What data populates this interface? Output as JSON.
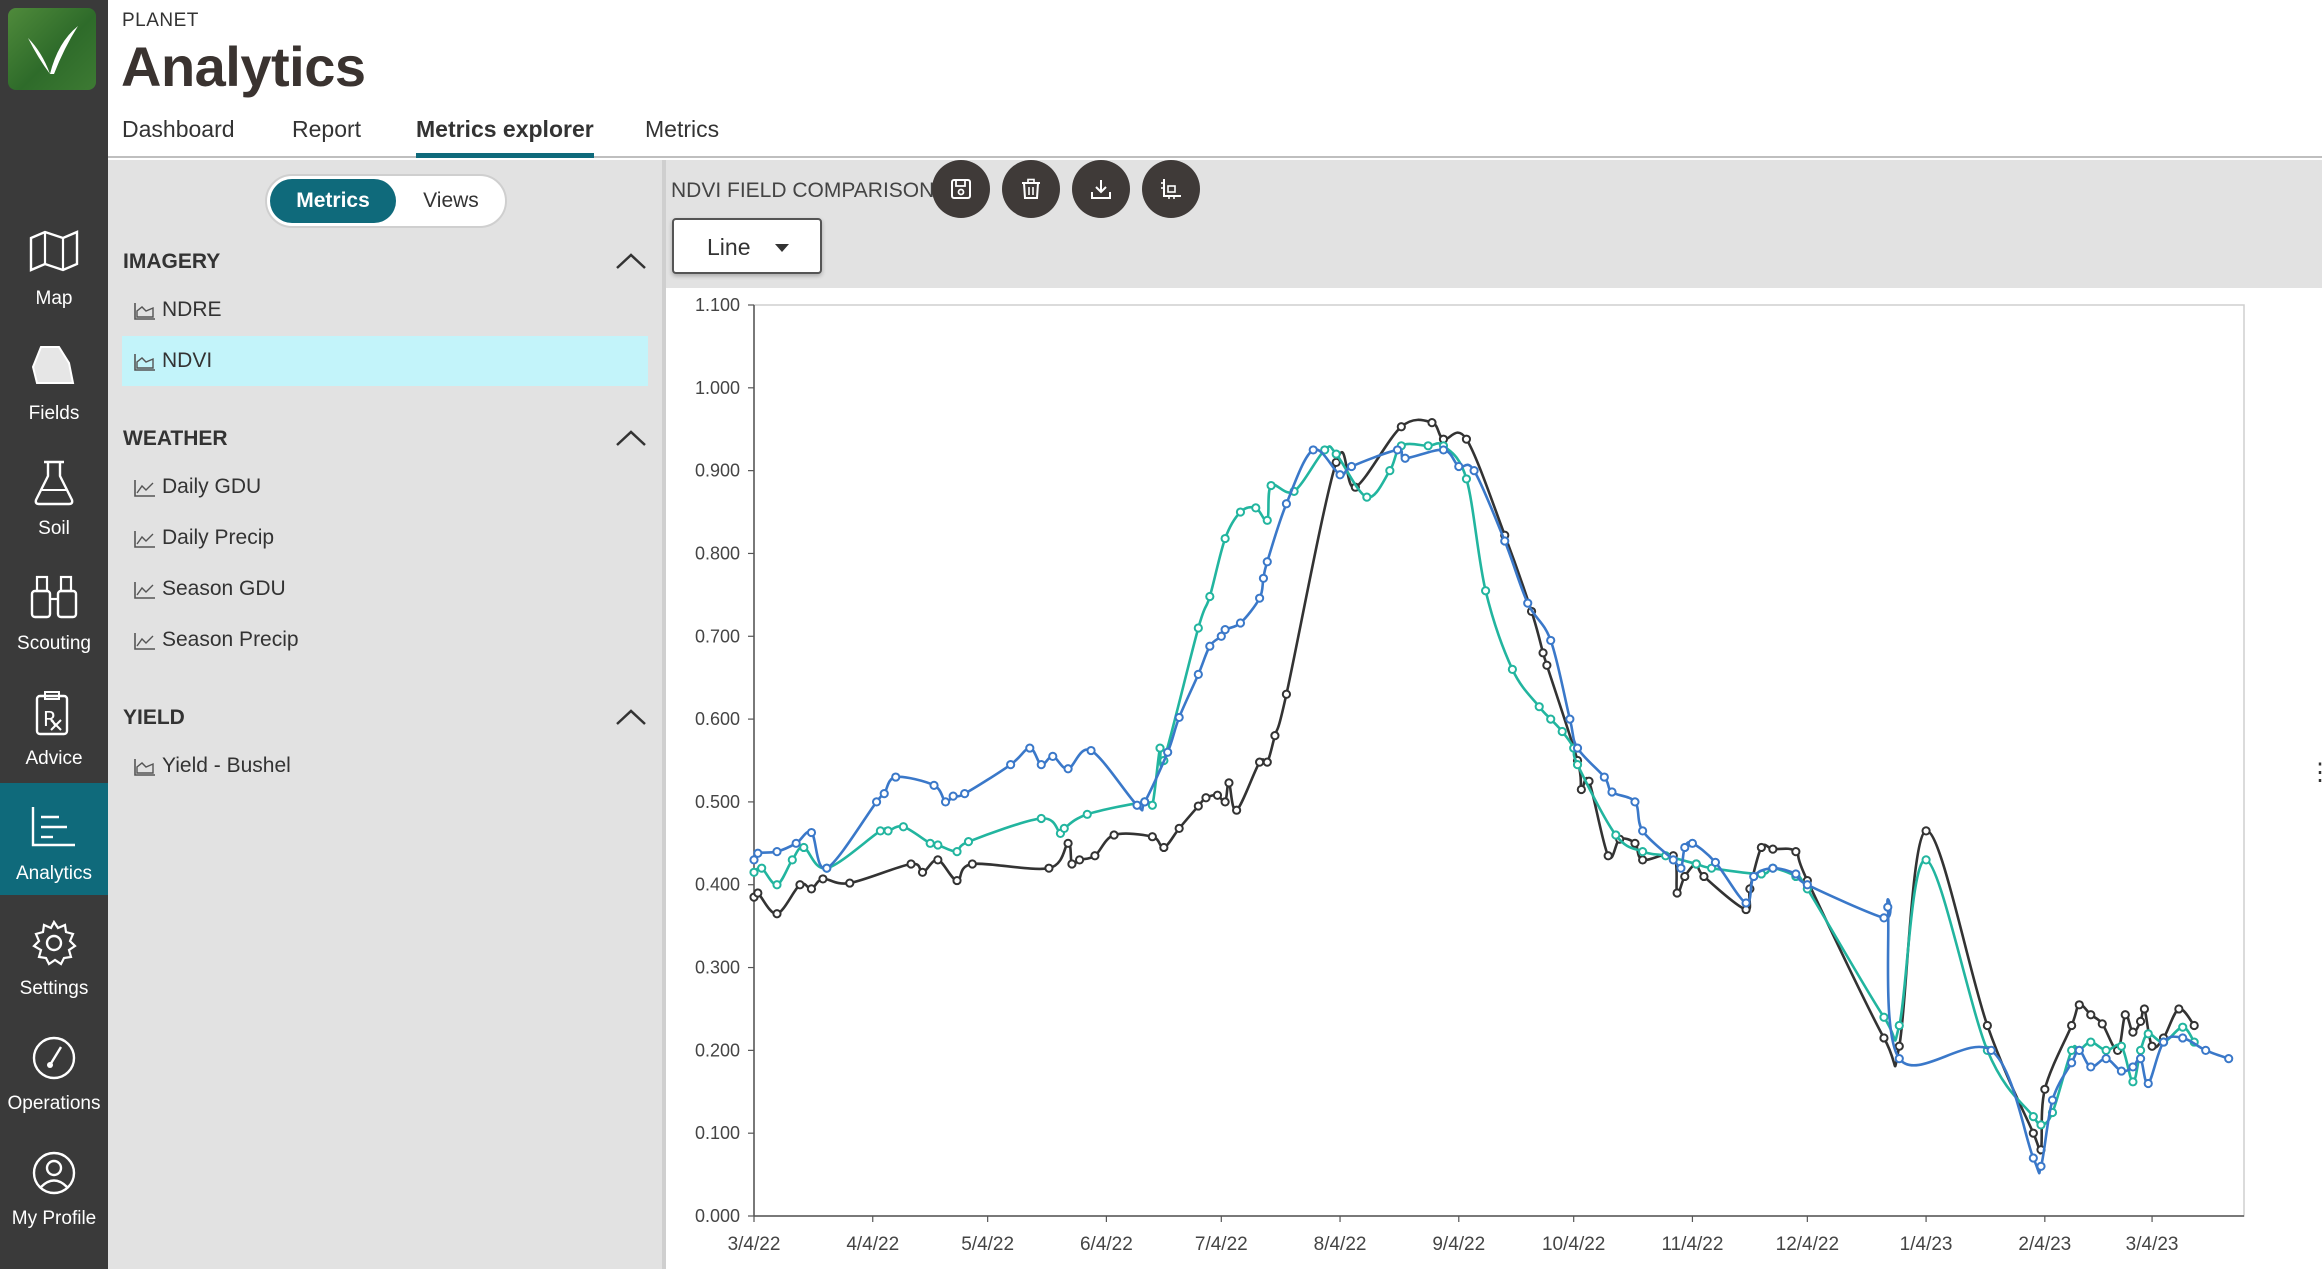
{
  "app": {
    "brand": "PLANET",
    "title": "Analytics"
  },
  "tabs": [
    {
      "label": "Dashboard",
      "active": false
    },
    {
      "label": "Report",
      "active": false
    },
    {
      "label": "Metrics explorer",
      "active": true
    },
    {
      "label": "Metrics",
      "active": false
    }
  ],
  "nav": [
    {
      "label": "Map",
      "icon": "map-icon",
      "active": false
    },
    {
      "label": "Fields",
      "icon": "fields-icon",
      "active": false
    },
    {
      "label": "Soil",
      "icon": "flask-icon",
      "active": false
    },
    {
      "label": "Scouting",
      "icon": "binoculars-icon",
      "active": false
    },
    {
      "label": "Advice",
      "icon": "prescription-icon",
      "active": false
    },
    {
      "label": "Analytics",
      "icon": "analytics-icon",
      "active": true
    },
    {
      "label": "Settings",
      "icon": "gear-icon",
      "active": false
    },
    {
      "label": "Operations",
      "icon": "gauge-icon",
      "active": false
    },
    {
      "label": "My Profile",
      "icon": "user-icon",
      "active": false
    }
  ],
  "panel": {
    "toggle": {
      "metrics": "Metrics",
      "views": "Views",
      "selected": "Metrics"
    },
    "sections": [
      {
        "title": "IMAGERY",
        "items": [
          {
            "label": "NDRE",
            "icon": "area-chart-icon",
            "selected": false
          },
          {
            "label": "NDVI",
            "icon": "area-chart-icon",
            "selected": true
          }
        ]
      },
      {
        "title": "WEATHER",
        "items": [
          {
            "label": "Daily GDU",
            "icon": "line-chart-icon",
            "selected": false
          },
          {
            "label": "Daily Precip",
            "icon": "line-chart-icon",
            "selected": false
          },
          {
            "label": "Season GDU",
            "icon": "line-chart-icon",
            "selected": false
          },
          {
            "label": "Season Precip",
            "icon": "line-chart-icon",
            "selected": false
          }
        ]
      },
      {
        "title": "YIELD",
        "items": [
          {
            "label": "Yield - Bushel",
            "icon": "area-chart-icon",
            "selected": false
          }
        ]
      }
    ]
  },
  "main": {
    "chart_title": "NDVI FIELD COMPARISON",
    "chart_type_selected": "Line",
    "toolbar": [
      "save-icon",
      "trash-icon",
      "download-icon",
      "axis-settings-icon"
    ]
  },
  "colors": {
    "accent": "#0f6a7b",
    "rail": "#3a3a3a",
    "selected_item": "#c3f4fa",
    "series_black": "#333333",
    "series_teal": "#22b59f",
    "series_blue": "#3a78c9"
  },
  "chart_data": {
    "type": "line",
    "title": "",
    "xlabel": "",
    "ylabel": "",
    "ylim": [
      0,
      1.1
    ],
    "yticks": [
      "0.000",
      "0.100",
      "0.200",
      "0.300",
      "0.400",
      "0.500",
      "0.600",
      "0.700",
      "0.800",
      "0.900",
      "1.000",
      "1.100"
    ],
    "xticks": [
      "3/4/22",
      "4/4/22",
      "5/4/22",
      "6/4/22",
      "7/4/22",
      "8/4/22",
      "9/4/22",
      "10/4/22",
      "11/4/22",
      "12/4/22",
      "1/4/23",
      "2/4/23",
      "3/4/23"
    ],
    "xlim": [
      "2022-03-04",
      "2023-03-28"
    ],
    "grid": false,
    "legend": "none",
    "series": [
      {
        "color": "#333333",
        "points": [
          [
            "2022-03-04",
            0.385
          ],
          [
            "2022-03-05",
            0.39
          ],
          [
            "2022-03-10",
            0.365
          ],
          [
            "2022-03-16",
            0.4
          ],
          [
            "2022-03-19",
            0.395
          ],
          [
            "2022-03-22",
            0.407
          ],
          [
            "2022-03-29",
            0.402
          ],
          [
            "2022-04-14",
            0.425
          ],
          [
            "2022-04-17",
            0.415
          ],
          [
            "2022-04-21",
            0.43
          ],
          [
            "2022-04-26",
            0.405
          ],
          [
            "2022-04-30",
            0.425
          ],
          [
            "2022-05-20",
            0.42
          ],
          [
            "2022-05-25",
            0.45
          ],
          [
            "2022-05-26",
            0.425
          ],
          [
            "2022-05-28",
            0.43
          ],
          [
            "2022-06-01",
            0.435
          ],
          [
            "2022-06-06",
            0.46
          ],
          [
            "2022-06-16",
            0.458
          ],
          [
            "2022-06-19",
            0.445
          ],
          [
            "2022-06-23",
            0.468
          ],
          [
            "2022-06-28",
            0.495
          ],
          [
            "2022-06-30",
            0.505
          ],
          [
            "2022-07-03",
            0.508
          ],
          [
            "2022-07-05",
            0.5
          ],
          [
            "2022-07-06",
            0.523
          ],
          [
            "2022-07-08",
            0.49
          ],
          [
            "2022-07-14",
            0.548
          ],
          [
            "2022-07-16",
            0.548
          ],
          [
            "2022-07-18",
            0.58
          ],
          [
            "2022-07-21",
            0.63
          ],
          [
            "2022-08-03",
            0.91
          ],
          [
            "2022-08-08",
            0.88
          ],
          [
            "2022-08-20",
            0.953
          ],
          [
            "2022-08-28",
            0.958
          ],
          [
            "2022-08-31",
            0.938
          ],
          [
            "2022-09-06",
            0.938
          ],
          [
            "2022-09-16",
            0.822
          ],
          [
            "2022-09-23",
            0.73
          ],
          [
            "2022-09-26",
            0.68
          ],
          [
            "2022-09-27",
            0.665
          ],
          [
            "2022-10-05",
            0.55
          ],
          [
            "2022-10-06",
            0.515
          ],
          [
            "2022-10-08",
            0.525
          ],
          [
            "2022-10-13",
            0.435
          ],
          [
            "2022-10-16",
            0.455
          ],
          [
            "2022-10-20",
            0.45
          ],
          [
            "2022-10-22",
            0.43
          ],
          [
            "2022-10-30",
            0.435
          ],
          [
            "2022-10-31",
            0.39
          ],
          [
            "2022-11-02",
            0.41
          ],
          [
            "2022-11-05",
            0.425
          ],
          [
            "2022-11-07",
            0.41
          ],
          [
            "2022-11-18",
            0.37
          ],
          [
            "2022-11-19",
            0.395
          ],
          [
            "2022-11-22",
            0.445
          ],
          [
            "2022-11-25",
            0.443
          ],
          [
            "2022-12-01",
            0.44
          ],
          [
            "2022-12-04",
            0.405
          ],
          [
            "2022-12-24",
            0.215
          ],
          [
            "2022-12-28",
            0.205
          ],
          [
            "2023-01-04",
            0.465
          ],
          [
            "2023-01-20",
            0.23
          ],
          [
            "2023-02-01",
            0.1
          ],
          [
            "2023-02-03",
            0.08
          ],
          [
            "2023-02-04",
            0.153
          ],
          [
            "2023-02-11",
            0.23
          ],
          [
            "2023-02-13",
            0.255
          ],
          [
            "2023-02-16",
            0.243
          ],
          [
            "2023-02-19",
            0.232
          ],
          [
            "2023-02-23",
            0.2
          ],
          [
            "2023-02-25",
            0.243
          ],
          [
            "2023-02-27",
            0.222
          ],
          [
            "2023-03-01",
            0.235
          ],
          [
            "2023-03-02",
            0.25
          ],
          [
            "2023-03-04",
            0.205
          ],
          [
            "2023-03-07",
            0.215
          ],
          [
            "2023-03-11",
            0.25
          ],
          [
            "2023-03-15",
            0.23
          ]
        ]
      },
      {
        "color": "#22b59f",
        "points": [
          [
            "2022-03-04",
            0.415
          ],
          [
            "2022-03-06",
            0.42
          ],
          [
            "2022-03-10",
            0.4
          ],
          [
            "2022-03-14",
            0.43
          ],
          [
            "2022-03-17",
            0.445
          ],
          [
            "2022-03-23",
            0.42
          ],
          [
            "2022-04-06",
            0.465
          ],
          [
            "2022-04-08",
            0.465
          ],
          [
            "2022-04-12",
            0.47
          ],
          [
            "2022-04-19",
            0.45
          ],
          [
            "2022-04-21",
            0.448
          ],
          [
            "2022-04-26",
            0.44
          ],
          [
            "2022-04-29",
            0.452
          ],
          [
            "2022-05-18",
            0.48
          ],
          [
            "2022-05-23",
            0.462
          ],
          [
            "2022-05-24",
            0.468
          ],
          [
            "2022-05-30",
            0.485
          ],
          [
            "2022-06-14",
            0.5
          ],
          [
            "2022-06-16",
            0.496
          ],
          [
            "2022-06-18",
            0.565
          ],
          [
            "2022-06-19",
            0.55
          ],
          [
            "2022-06-28",
            0.71
          ],
          [
            "2022-07-01",
            0.748
          ],
          [
            "2022-07-05",
            0.818
          ],
          [
            "2022-07-09",
            0.85
          ],
          [
            "2022-07-13",
            0.855
          ],
          [
            "2022-07-16",
            0.84
          ],
          [
            "2022-07-17",
            0.882
          ],
          [
            "2022-07-23",
            0.875
          ],
          [
            "2022-07-31",
            0.925
          ],
          [
            "2022-08-03",
            0.92
          ],
          [
            "2022-08-11",
            0.868
          ],
          [
            "2022-08-17",
            0.9
          ],
          [
            "2022-08-20",
            0.93
          ],
          [
            "2022-08-27",
            0.93
          ],
          [
            "2022-08-31",
            0.93
          ],
          [
            "2022-09-06",
            0.89
          ],
          [
            "2022-09-11",
            0.755
          ],
          [
            "2022-09-18",
            0.66
          ],
          [
            "2022-09-25",
            0.615
          ],
          [
            "2022-09-28",
            0.6
          ],
          [
            "2022-10-01",
            0.585
          ],
          [
            "2022-10-04",
            0.565
          ],
          [
            "2022-10-05",
            0.545
          ],
          [
            "2022-10-15",
            0.46
          ],
          [
            "2022-10-22",
            0.44
          ],
          [
            "2022-10-28",
            0.435
          ],
          [
            "2022-11-05",
            0.425
          ],
          [
            "2022-11-09",
            0.42
          ],
          [
            "2022-11-22",
            0.413
          ],
          [
            "2022-11-25",
            0.42
          ],
          [
            "2022-12-01",
            0.41
          ],
          [
            "2022-12-04",
            0.395
          ],
          [
            "2022-12-24",
            0.24
          ],
          [
            "2022-12-28",
            0.23
          ],
          [
            "2023-01-04",
            0.43
          ],
          [
            "2023-01-20",
            0.2
          ],
          [
            "2023-02-01",
            0.12
          ],
          [
            "2023-02-03",
            0.11
          ],
          [
            "2023-02-06",
            0.125
          ],
          [
            "2023-02-11",
            0.2
          ],
          [
            "2023-02-13",
            0.2
          ],
          [
            "2023-02-16",
            0.21
          ],
          [
            "2023-02-20",
            0.2
          ],
          [
            "2023-02-24",
            0.205
          ],
          [
            "2023-02-27",
            0.162
          ],
          [
            "2023-03-01",
            0.2
          ],
          [
            "2023-03-03",
            0.22
          ],
          [
            "2023-03-07",
            0.21
          ],
          [
            "2023-03-12",
            0.228
          ],
          [
            "2023-03-15",
            0.21
          ]
        ]
      },
      {
        "color": "#3a78c9",
        "points": [
          [
            "2022-03-04",
            0.43
          ],
          [
            "2022-03-05",
            0.438
          ],
          [
            "2022-03-10",
            0.44
          ],
          [
            "2022-03-15",
            0.45
          ],
          [
            "2022-03-19",
            0.463
          ],
          [
            "2022-03-23",
            0.42
          ],
          [
            "2022-04-05",
            0.5
          ],
          [
            "2022-04-07",
            0.51
          ],
          [
            "2022-04-10",
            0.53
          ],
          [
            "2022-04-20",
            0.52
          ],
          [
            "2022-04-23",
            0.5
          ],
          [
            "2022-04-25",
            0.507
          ],
          [
            "2022-04-28",
            0.51
          ],
          [
            "2022-05-10",
            0.545
          ],
          [
            "2022-05-15",
            0.565
          ],
          [
            "2022-05-18",
            0.545
          ],
          [
            "2022-05-21",
            0.555
          ],
          [
            "2022-05-25",
            0.54
          ],
          [
            "2022-05-31",
            0.562
          ],
          [
            "2022-06-12",
            0.496
          ],
          [
            "2022-06-14",
            0.5
          ],
          [
            "2022-06-20",
            0.56
          ],
          [
            "2022-06-23",
            0.602
          ],
          [
            "2022-06-28",
            0.654
          ],
          [
            "2022-07-01",
            0.688
          ],
          [
            "2022-07-04",
            0.7
          ],
          [
            "2022-07-05",
            0.708
          ],
          [
            "2022-07-09",
            0.716
          ],
          [
            "2022-07-14",
            0.746
          ],
          [
            "2022-07-15",
            0.77
          ],
          [
            "2022-07-16",
            0.79
          ],
          [
            "2022-07-21",
            0.86
          ],
          [
            "2022-07-28",
            0.925
          ],
          [
            "2022-08-04",
            0.895
          ],
          [
            "2022-08-07",
            0.905
          ],
          [
            "2022-08-19",
            0.925
          ],
          [
            "2022-08-21",
            0.915
          ],
          [
            "2022-08-31",
            0.925
          ],
          [
            "2022-09-04",
            0.905
          ],
          [
            "2022-09-08",
            0.9
          ],
          [
            "2022-09-16",
            0.815
          ],
          [
            "2022-09-22",
            0.74
          ],
          [
            "2022-09-28",
            0.695
          ],
          [
            "2022-10-03",
            0.6
          ],
          [
            "2022-10-05",
            0.565
          ],
          [
            "2022-10-12",
            0.53
          ],
          [
            "2022-10-14",
            0.512
          ],
          [
            "2022-10-20",
            0.5
          ],
          [
            "2022-10-22",
            0.465
          ],
          [
            "2022-10-30",
            0.43
          ],
          [
            "2022-11-01",
            0.42
          ],
          [
            "2022-11-02",
            0.445
          ],
          [
            "2022-11-04",
            0.45
          ],
          [
            "2022-11-10",
            0.427
          ],
          [
            "2022-11-18",
            0.378
          ],
          [
            "2022-11-20",
            0.41
          ],
          [
            "2022-11-25",
            0.42
          ],
          [
            "2022-12-01",
            0.413
          ],
          [
            "2022-12-04",
            0.4
          ],
          [
            "2022-12-24",
            0.36
          ],
          [
            "2022-12-25",
            0.373
          ],
          [
            "2022-12-28",
            0.19
          ],
          [
            "2023-01-21",
            0.2
          ],
          [
            "2023-02-01",
            0.07
          ],
          [
            "2023-02-03",
            0.06
          ],
          [
            "2023-02-06",
            0.14
          ],
          [
            "2023-02-11",
            0.185
          ],
          [
            "2023-02-13",
            0.2
          ],
          [
            "2023-02-16",
            0.18
          ],
          [
            "2023-02-20",
            0.19
          ],
          [
            "2023-02-24",
            0.175
          ],
          [
            "2023-02-27",
            0.18
          ],
          [
            "2023-03-01",
            0.19
          ],
          [
            "2023-03-03",
            0.16
          ],
          [
            "2023-03-07",
            0.21
          ],
          [
            "2023-03-12",
            0.215
          ],
          [
            "2023-03-18",
            0.2
          ],
          [
            "2023-03-24",
            0.19
          ]
        ]
      }
    ]
  }
}
